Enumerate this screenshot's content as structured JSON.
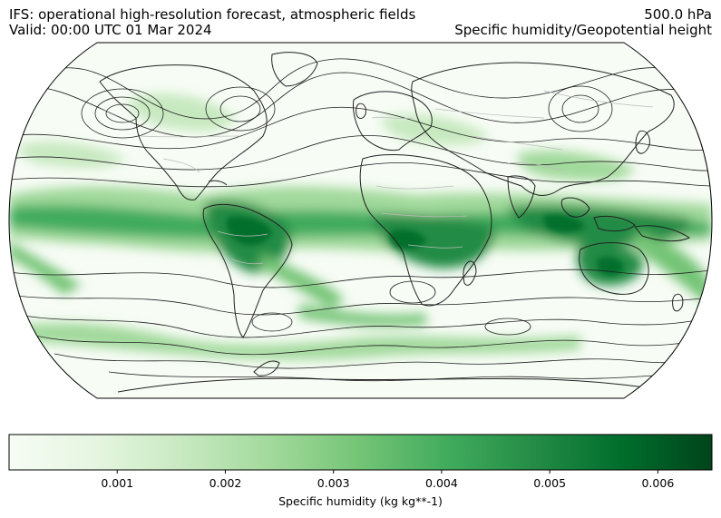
{
  "header": {
    "title_left_1": "IFS: operational high-resolution forecast, atmospheric fields",
    "title_left_2": "Valid: 00:00 UTC 01 Mar 2024",
    "title_right_1": "500.0 hPa",
    "title_right_2": "Specific humidity/Geopotential height"
  },
  "map": {
    "projection": "Robinson",
    "field": "Specific humidity",
    "contour_field": "Geopotential height",
    "level": "500.0 hPa",
    "colormap": [
      "#f7fcf5",
      "#e5f5e0",
      "#c7e9c0",
      "#a1d99b",
      "#74c476",
      "#41ab5d",
      "#238b45",
      "#006d2c",
      "#00441b"
    ],
    "coastline_color": "#222222",
    "border_color": "#bbbbbb",
    "contour_color": "#222222"
  },
  "colorbar": {
    "label": "Specific humidity (kg kg**-1)",
    "min": 0.0,
    "max": 0.0065,
    "ticks": [
      {
        "value": 0.001,
        "label": "0.001"
      },
      {
        "value": 0.002,
        "label": "0.002"
      },
      {
        "value": 0.003,
        "label": "0.003"
      },
      {
        "value": 0.004,
        "label": "0.004"
      },
      {
        "value": 0.005,
        "label": "0.005"
      },
      {
        "value": 0.006,
        "label": "0.006"
      }
    ]
  }
}
